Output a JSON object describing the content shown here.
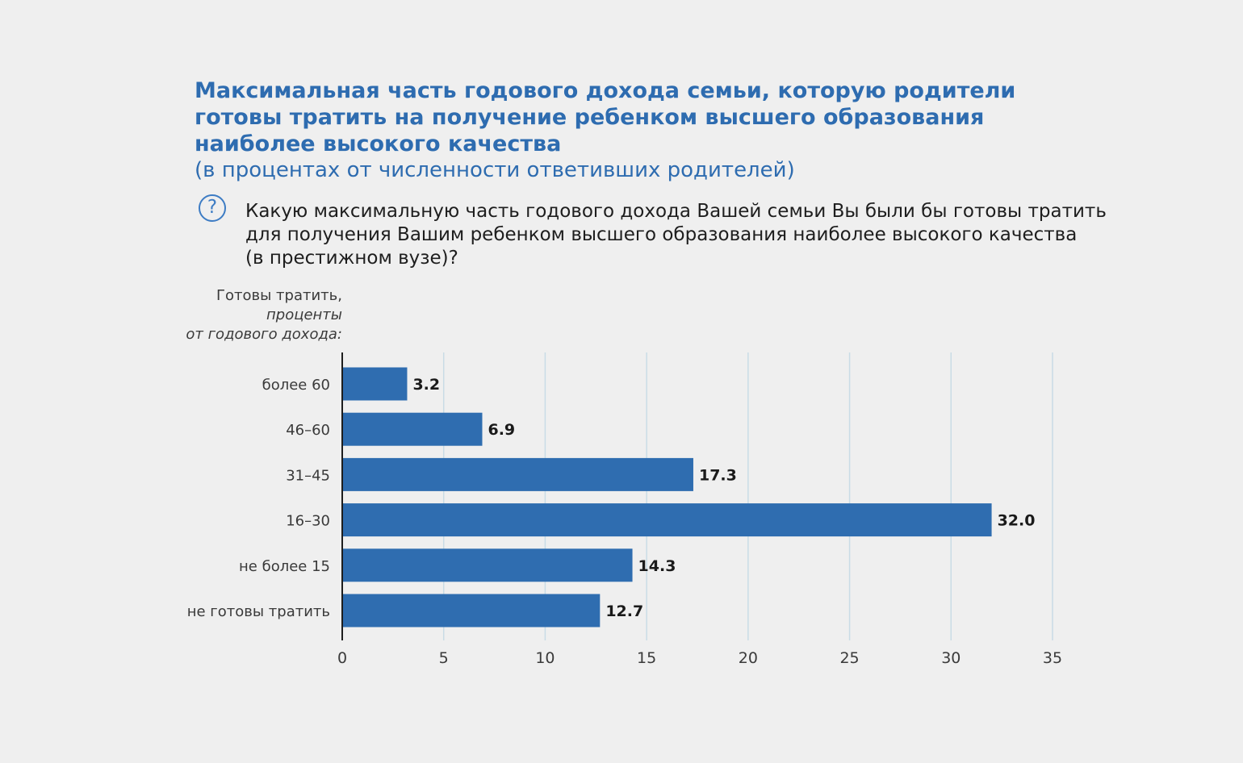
{
  "header": {
    "title_lines": [
      "Максимальная часть годового дохода семьи, которую родители",
      "готовы тратить на получение ребенком высшего образования",
      "наиболее высокого качества"
    ],
    "subtitle": "(в процентах от численности ответивших родителей)",
    "question_icon": "question-circle-icon",
    "question_lines": [
      "Какую максимальную часть годового дохода Вашей семьи Вы были бы готовы тратить",
      "для получения Вашим ребенком высшего образования наиболее высокого качества",
      "(в престижном вузе)?"
    ]
  },
  "axis_caption": {
    "line1": "Готовы тратить,",
    "line2": "проценты",
    "line3": "от годового дохода:"
  },
  "chart_data": {
    "type": "bar",
    "orientation": "horizontal",
    "categories": [
      "более 60",
      "46–60",
      "31–45",
      "16–30",
      "не более 15",
      "не готовы тратить"
    ],
    "values": [
      3.2,
      6.9,
      17.3,
      32.0,
      14.3,
      12.7
    ],
    "value_labels": [
      "3.2",
      "6.9",
      "17.3",
      "32.0",
      "14.3",
      "12.7"
    ],
    "xlim": [
      0,
      35
    ],
    "xticks": [
      0,
      5,
      10,
      15,
      20,
      25,
      30,
      35
    ],
    "grid": true,
    "bar_color": "#2f6db0",
    "grid_color": "#c9dce6"
  }
}
